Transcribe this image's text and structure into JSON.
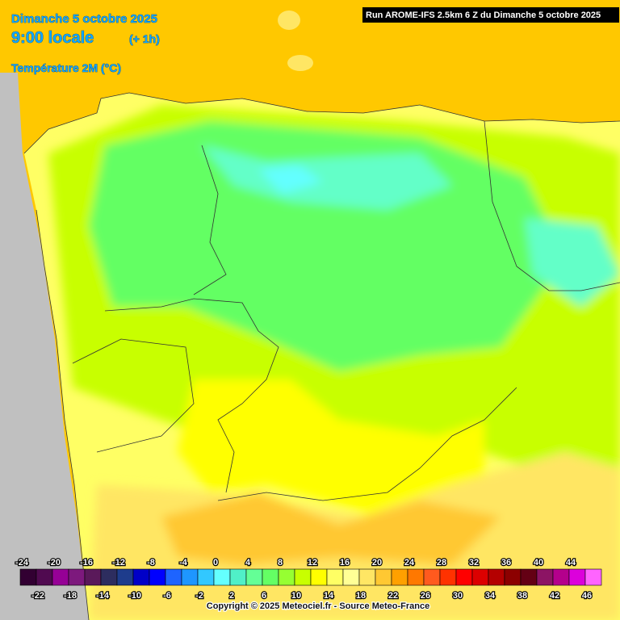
{
  "header": {
    "date": "Dimanche 5 octobre 2025",
    "time": "9:00 locale",
    "offset": "(+ 1h)",
    "variable": "Température 2M (°C)",
    "run": "Run AROME-IFS 2.5km 6 Z du Dimanche 5 octobre 2025"
  },
  "legend": {
    "ticks": [
      -24,
      -22,
      -20,
      -18,
      -16,
      -14,
      -12,
      -10,
      -8,
      -6,
      -4,
      -2,
      0,
      2,
      4,
      6,
      8,
      10,
      12,
      14,
      16,
      18,
      20,
      22,
      24,
      26,
      28,
      30,
      32,
      34,
      36,
      38,
      40,
      42,
      44,
      46
    ],
    "colors": [
      "#320032",
      "#500a50",
      "#960096",
      "#7d197d",
      "#5a195a",
      "#2d2d5f",
      "#1e3c8c",
      "#0000c8",
      "#0000ff",
      "#1e64ff",
      "#1e96ff",
      "#32c8ff",
      "#64ffff",
      "#50f0c8",
      "#64ff96",
      "#64ff64",
      "#96ff32",
      "#c8ff00",
      "#ffff00",
      "#ffff64",
      "#ffff96",
      "#ffe664",
      "#ffc832",
      "#ffa000",
      "#ff7800",
      "#ff5a1e",
      "#ff3200",
      "#ff0000",
      "#dc0000",
      "#b40000",
      "#8c0000",
      "#640014",
      "#8c1464",
      "#b4008c",
      "#dc00dc",
      "#ff64ff"
    ]
  },
  "footer": "Copyright © 2025 Meteociel.fr - Source Meteo-France"
}
